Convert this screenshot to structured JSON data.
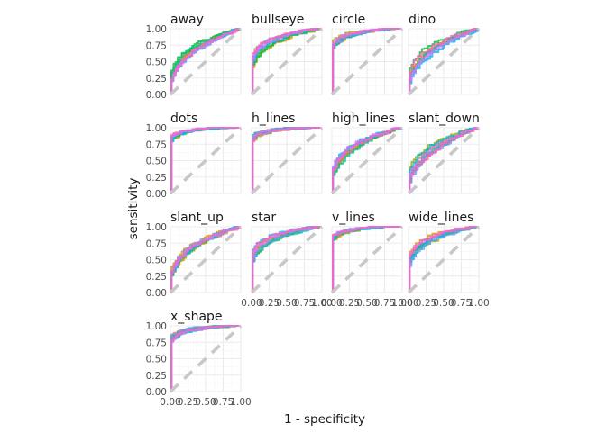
{
  "chart_data": {
    "type": "line",
    "facet_by": "dataset",
    "facets": [
      {
        "name": "away",
        "auc": 0.75
      },
      {
        "name": "bullseye",
        "auc": 0.83
      },
      {
        "name": "circle",
        "auc": 0.93
      },
      {
        "name": "dino",
        "auc": 0.73
      },
      {
        "name": "dots",
        "auc": 0.99
      },
      {
        "name": "h_lines",
        "auc": 0.96
      },
      {
        "name": "high_lines",
        "auc": 0.77
      },
      {
        "name": "slant_down",
        "auc": 0.73
      },
      {
        "name": "slant_up",
        "auc": 0.77
      },
      {
        "name": "star",
        "auc": 0.86
      },
      {
        "name": "v_lines",
        "auc": 0.98
      },
      {
        "name": "wide_lines",
        "auc": 0.84
      },
      {
        "name": "x_shape",
        "auc": 0.94
      }
    ],
    "series_colors": [
      "#F8766D",
      "#D39200",
      "#93AA00",
      "#00BA38",
      "#00C19F",
      "#00B9E3",
      "#619CFF",
      "#DB72FB",
      "#FF61C3"
    ],
    "reference_line": {
      "from": [
        0,
        0
      ],
      "to": [
        1,
        1
      ],
      "style": "dashed",
      "color": "#c8c8c8"
    },
    "x": {
      "label": "1 - specificity",
      "range": [
        0,
        1
      ],
      "ticks": [
        "0.00",
        "0.25",
        "0.50",
        "0.75",
        "1.00"
      ]
    },
    "y": {
      "label": "sensitivity",
      "range": [
        0,
        1
      ],
      "ticks": [
        "0.00",
        "0.25",
        "0.50",
        "0.75",
        "1.00"
      ]
    },
    "grid": true,
    "legend": "none"
  }
}
